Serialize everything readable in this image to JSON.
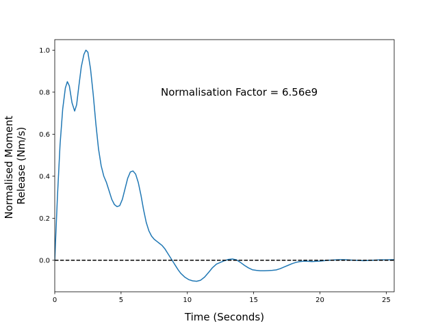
{
  "chart_data": {
    "type": "line",
    "title": "",
    "xlabel": "Time (Seconds)",
    "ylabel": [
      "Normalised Moment",
      "Release (Nm/s)"
    ],
    "xlim": [
      0,
      25.6
    ],
    "ylim": [
      -0.15,
      1.05
    ],
    "xticks": [
      0,
      5,
      10,
      15,
      20,
      25
    ],
    "yticks": [
      0.0,
      0.2,
      0.4,
      0.6,
      0.8,
      1.0
    ],
    "xtick_labels": [
      "0",
      "5",
      "10",
      "15",
      "20",
      "25"
    ],
    "ytick_labels": [
      "0.0",
      "0.2",
      "0.4",
      "0.6",
      "0.8",
      "1.0"
    ],
    "grid": false,
    "annotation": {
      "text": "Normalisation Factor = 6.56e9",
      "x": 8.0,
      "y": 0.8
    },
    "series": [
      {
        "color": "#1f77b4",
        "style": "solid",
        "x": [
          0,
          0.2,
          0.4,
          0.6,
          0.8,
          0.95,
          1.1,
          1.3,
          1.5,
          1.65,
          1.8,
          2.0,
          2.2,
          2.35,
          2.5,
          2.7,
          2.9,
          3.1,
          3.3,
          3.5,
          3.7,
          3.9,
          4.1,
          4.3,
          4.5,
          4.7,
          4.9,
          5.1,
          5.3,
          5.5,
          5.7,
          5.9,
          6.1,
          6.3,
          6.5,
          6.7,
          6.9,
          7.1,
          7.3,
          7.5,
          7.7,
          7.9,
          8.1,
          8.3,
          8.5,
          8.7,
          8.9,
          9.1,
          9.3,
          9.5,
          9.8,
          10.1,
          10.4,
          10.7,
          11.0,
          11.3,
          11.6,
          11.9,
          12.2,
          12.5,
          12.8,
          13.1,
          13.4,
          13.7,
          14.0,
          14.3,
          14.6,
          14.9,
          15.2,
          15.5,
          15.8,
          16.1,
          16.4,
          16.7,
          17.0,
          17.3,
          17.6,
          17.9,
          18.2,
          18.5,
          18.8,
          19.1,
          19.4,
          19.7,
          20.0,
          20.3,
          20.6,
          20.9,
          21.2,
          21.5,
          21.8,
          22.1,
          22.4,
          22.7,
          23.0,
          23.3,
          23.6,
          23.9,
          24.2,
          24.5,
          24.8,
          25.1,
          25.4,
          25.6
        ],
        "y": [
          0.0,
          0.3,
          0.55,
          0.72,
          0.82,
          0.85,
          0.83,
          0.75,
          0.71,
          0.74,
          0.82,
          0.92,
          0.98,
          1.0,
          0.99,
          0.91,
          0.79,
          0.65,
          0.53,
          0.45,
          0.4,
          0.37,
          0.33,
          0.29,
          0.265,
          0.255,
          0.26,
          0.29,
          0.34,
          0.39,
          0.42,
          0.425,
          0.41,
          0.37,
          0.31,
          0.24,
          0.18,
          0.14,
          0.115,
          0.1,
          0.09,
          0.08,
          0.07,
          0.055,
          0.035,
          0.015,
          -0.005,
          -0.025,
          -0.045,
          -0.062,
          -0.08,
          -0.092,
          -0.098,
          -0.1,
          -0.095,
          -0.08,
          -0.058,
          -0.035,
          -0.018,
          -0.01,
          -0.002,
          0.004,
          0.006,
          0.002,
          -0.01,
          -0.024,
          -0.036,
          -0.045,
          -0.048,
          -0.05,
          -0.05,
          -0.049,
          -0.048,
          -0.046,
          -0.04,
          -0.032,
          -0.024,
          -0.016,
          -0.01,
          -0.006,
          -0.004,
          -0.005,
          -0.006,
          -0.005,
          -0.004,
          -0.002,
          0.0,
          0.001,
          0.002,
          0.003,
          0.003,
          0.002,
          0.001,
          0.0,
          -0.001,
          -0.002,
          -0.001,
          0.0,
          0.001,
          0.002,
          0.002,
          0.002,
          0.003,
          0.003
        ]
      },
      {
        "color": "#000000",
        "style": "dashed",
        "x": [
          0,
          25.6
        ],
        "y": [
          0,
          0
        ]
      }
    ]
  }
}
